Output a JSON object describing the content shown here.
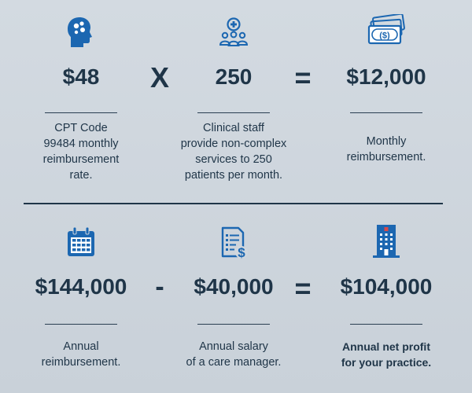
{
  "colors": {
    "icon": "#1c67b1",
    "text": "#1f3548",
    "background": "#cfd6dd"
  },
  "row1": {
    "item1": {
      "icon": "brain-head-icon",
      "value": "$48",
      "description": "CPT Code\n99484 monthly\nreimbursement\nrate."
    },
    "op1": "X",
    "item2": {
      "icon": "medical-staff-icon",
      "value": "250",
      "description": "Clinical staff\nprovide non-complex\nservices to 250\npatients per month."
    },
    "op2": "=",
    "item3": {
      "icon": "money-stack-icon",
      "value": "$12,000",
      "description": "Monthly\nreimbursement."
    }
  },
  "row2": {
    "item1": {
      "icon": "calendar-icon",
      "value": "$144,000",
      "description": "Annual\nreimbursement."
    },
    "op1": "-",
    "item2": {
      "icon": "invoice-dollar-icon",
      "value": "$40,000",
      "description": "Annual salary\nof a care manager."
    },
    "op2": "=",
    "item3": {
      "icon": "building-icon",
      "value": "$104,000",
      "description": "Annual net profit\nfor your practice."
    }
  }
}
